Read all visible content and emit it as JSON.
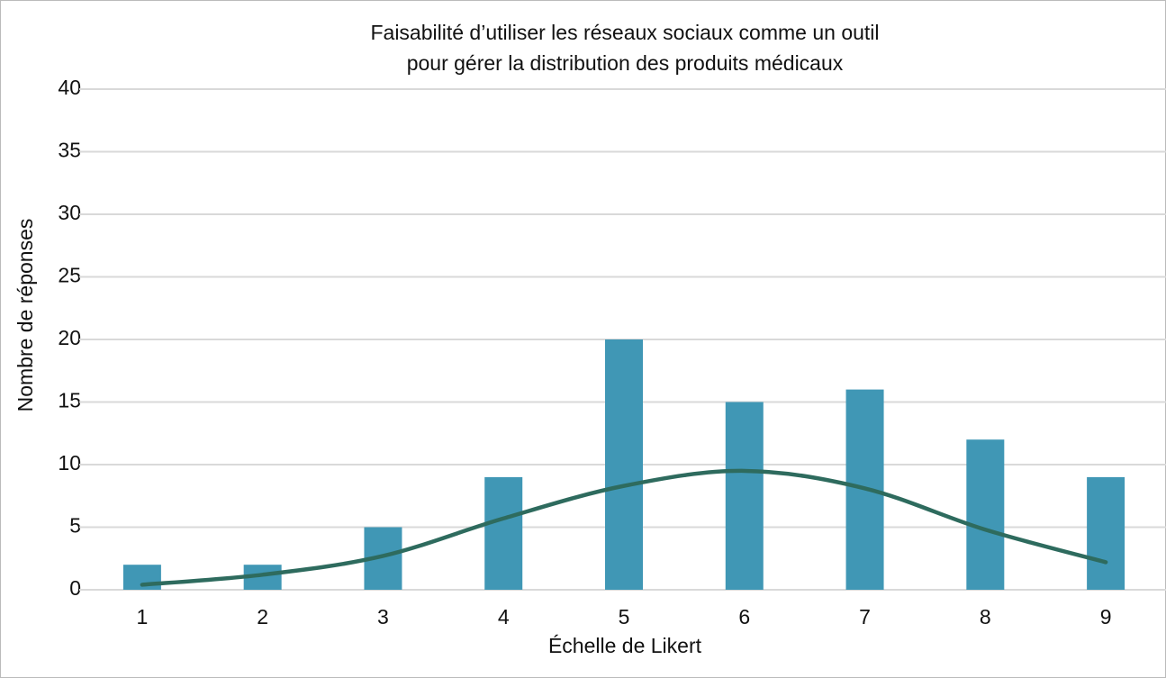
{
  "chart_data": {
    "type": "bar",
    "title": [
      "Faisabilité d’utiliser les réseaux sociaux comme un outil",
      "pour gérer la distribution des produits médicaux"
    ],
    "x_label": "Échelle de Likert",
    "y_label": "Nombre de réponses",
    "categories": [
      "1",
      "2",
      "3",
      "4",
      "5",
      "6",
      "7",
      "8",
      "9"
    ],
    "series": [
      {
        "type": "bar",
        "color": "#4097b5",
        "values": [
          2,
          2,
          5,
          9,
          20,
          15,
          16,
          12,
          9
        ]
      },
      {
        "type": "line",
        "color": "#2e6b5e",
        "values": [
          0.4,
          1.2,
          2.7,
          5.7,
          8.3,
          9.5,
          8.1,
          4.8,
          2.2
        ]
      }
    ],
    "ylim": [
      0,
      40
    ],
    "yticks": [
      0,
      5,
      10,
      15,
      20,
      25,
      30,
      35,
      40
    ],
    "grid": true
  }
}
